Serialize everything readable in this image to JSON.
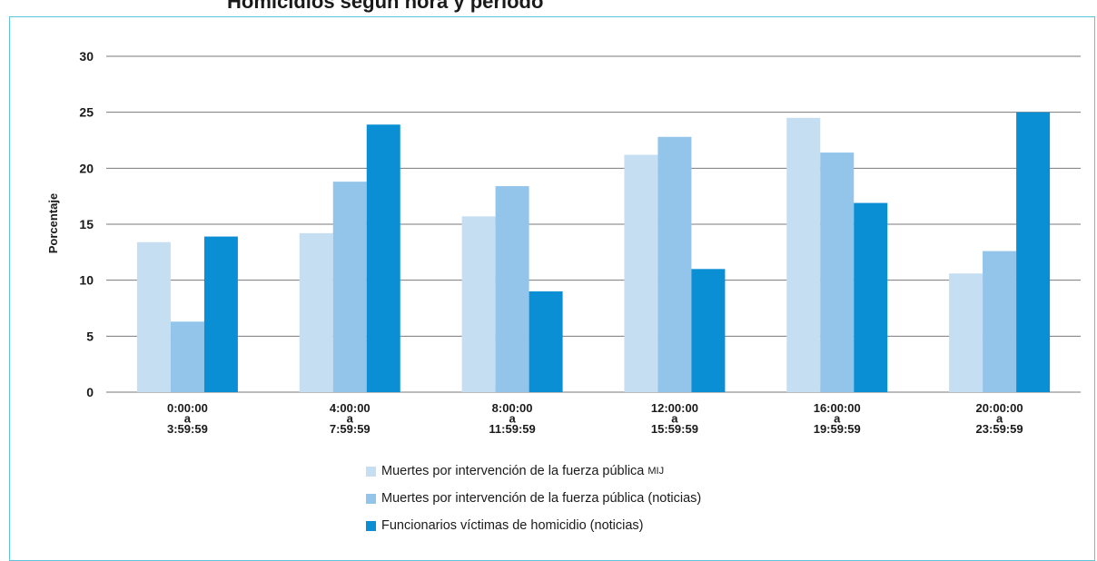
{
  "header_fragment": "...g...p...",
  "chart_data": {
    "type": "bar",
    "ylabel": "Porcentaje",
    "ylim": [
      0,
      30
    ],
    "yticks": [
      0,
      5,
      10,
      15,
      20,
      25,
      30
    ],
    "grid": true,
    "legend_position": "bottom",
    "categories": [
      [
        "0:00:00",
        "a",
        "3:59:59"
      ],
      [
        "4:00:00",
        "a",
        "7:59:59"
      ],
      [
        "8:00:00",
        "a",
        "11:59:59"
      ],
      [
        "12:00:00",
        "a",
        "15:59:59"
      ],
      [
        "16:00:00",
        "a",
        "19:59:59"
      ],
      [
        "20:00:00",
        "a",
        "23:59:59"
      ]
    ],
    "series": [
      {
        "name": "Muertes por intervención de la fuerza pública",
        "name_suffix": "MIJ",
        "color": "#c5def2",
        "values": [
          13.4,
          14.2,
          15.7,
          21.2,
          24.5,
          10.6
        ]
      },
      {
        "name": "Muertes por intervención de la fuerza pública (noticias)",
        "color": "#93c4ea",
        "values": [
          6.3,
          18.8,
          18.4,
          22.8,
          21.4,
          12.6
        ]
      },
      {
        "name": "Funcionarios víctimas de homicidio (noticias)",
        "color": "#0b8fd4",
        "values": [
          13.9,
          23.9,
          9.0,
          11.0,
          16.9,
          25.0
        ]
      }
    ]
  }
}
